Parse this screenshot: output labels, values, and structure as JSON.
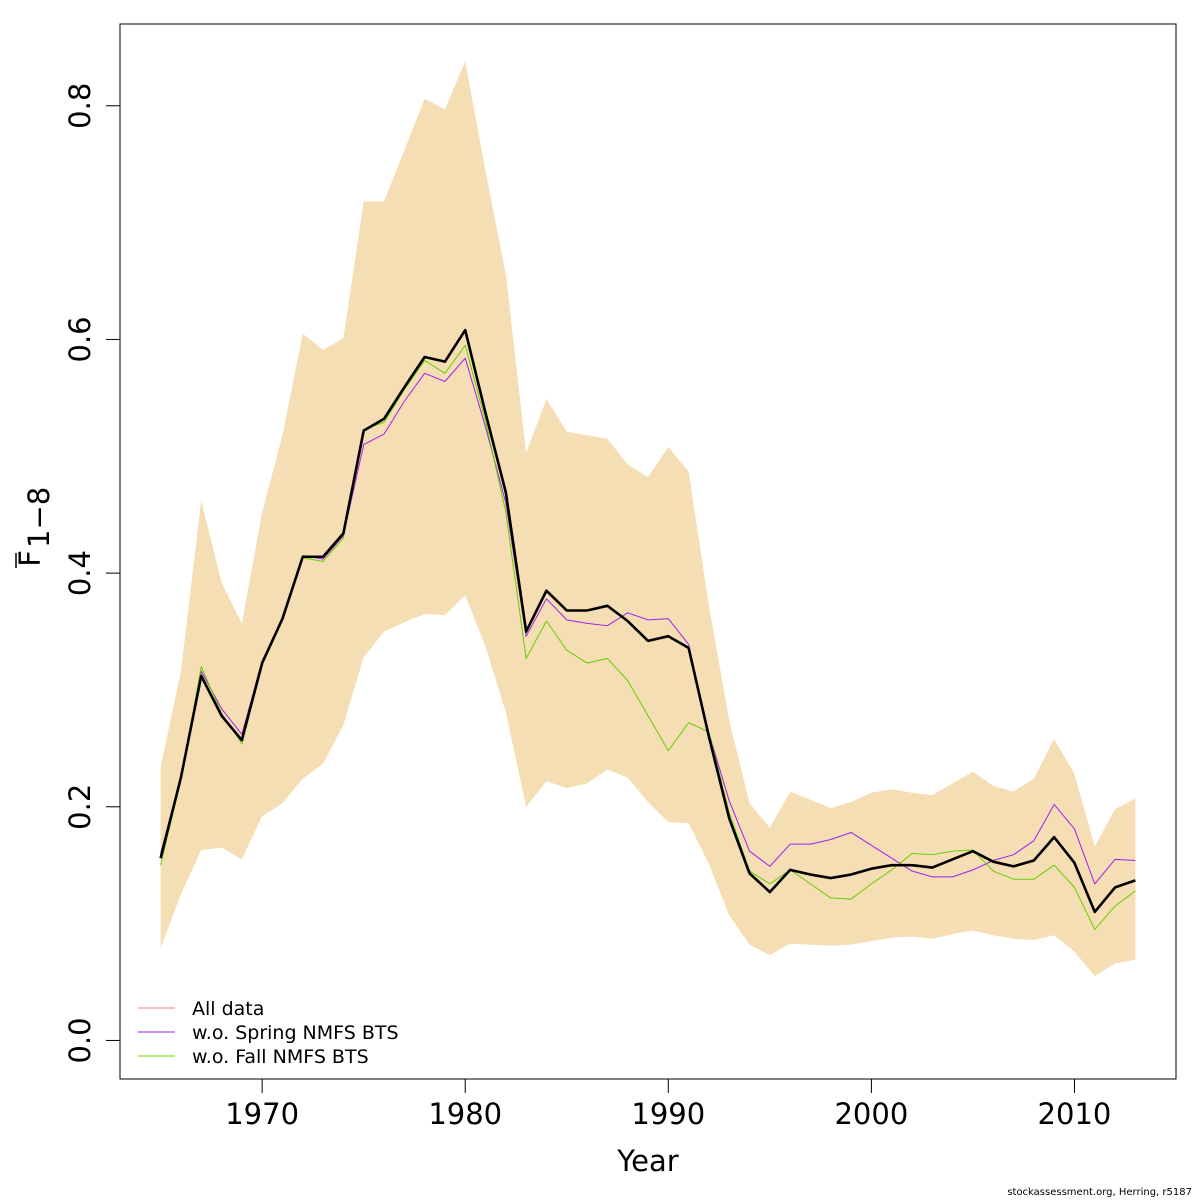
{
  "chart_data": {
    "type": "line",
    "title": "",
    "xlabel": "Year",
    "ylabel": "F",
    "ylabel_subscript": "1−8",
    "xlim": [
      1963,
      2015
    ],
    "ylim": [
      -0.033,
      0.87
    ],
    "x_ticks": [
      1970,
      1980,
      1990,
      2000,
      2010
    ],
    "y_ticks": [
      0.0,
      0.2,
      0.4,
      0.6,
      0.8
    ],
    "y_tick_labels": [
      "0.0",
      "0.2",
      "0.4",
      "0.6",
      "0.8"
    ],
    "grid": false,
    "legend_position": "bottom-left",
    "x": [
      1965,
      1966,
      1967,
      1968,
      1969,
      1970,
      1971,
      1972,
      1973,
      1974,
      1975,
      1976,
      1977,
      1978,
      1979,
      1980,
      1981,
      1982,
      1983,
      1984,
      1985,
      1986,
      1987,
      1988,
      1989,
      1990,
      1991,
      1992,
      1993,
      1994,
      1995,
      1996,
      1997,
      1998,
      1999,
      2000,
      2001,
      2002,
      2003,
      2004,
      2005,
      2006,
      2007,
      2008,
      2009,
      2010,
      2011,
      2012,
      2013
    ],
    "band": {
      "color": "#F5DEB3",
      "lower": [
        0.079,
        0.125,
        0.163,
        0.165,
        0.155,
        0.192,
        0.203,
        0.224,
        0.237,
        0.27,
        0.328,
        0.35,
        0.358,
        0.365,
        0.364,
        0.381,
        0.337,
        0.281,
        0.2,
        0.222,
        0.216,
        0.22,
        0.232,
        0.225,
        0.204,
        0.187,
        0.186,
        0.151,
        0.107,
        0.082,
        0.073,
        0.083,
        0.082,
        0.081,
        0.082,
        0.085,
        0.088,
        0.089,
        0.087,
        0.091,
        0.094,
        0.09,
        0.087,
        0.086,
        0.09,
        0.076,
        0.055,
        0.066,
        0.069
      ],
      "upper": [
        0.234,
        0.316,
        0.462,
        0.392,
        0.357,
        0.452,
        0.518,
        0.605,
        0.591,
        0.601,
        0.718,
        0.718,
        0.762,
        0.806,
        0.797,
        0.838,
        0.744,
        0.656,
        0.503,
        0.549,
        0.521,
        0.518,
        0.515,
        0.493,
        0.482,
        0.508,
        0.487,
        0.372,
        0.274,
        0.203,
        0.182,
        0.213,
        0.206,
        0.199,
        0.204,
        0.212,
        0.215,
        0.212,
        0.21,
        0.22,
        0.23,
        0.218,
        0.213,
        0.224,
        0.258,
        0.228,
        0.166,
        0.198,
        0.207
      ]
    },
    "series": [
      {
        "name": "All data",
        "color": "#000000",
        "legend_color": "#F08080",
        "width": 2.6,
        "values": [
          0.156,
          0.225,
          0.312,
          0.278,
          0.257,
          0.323,
          0.361,
          0.414,
          0.414,
          0.434,
          0.522,
          0.532,
          0.559,
          0.585,
          0.581,
          0.608,
          0.537,
          0.469,
          0.35,
          0.385,
          0.368,
          0.368,
          0.372,
          0.359,
          0.342,
          0.346,
          0.336,
          0.26,
          0.19,
          0.143,
          0.127,
          0.146,
          0.142,
          0.139,
          0.142,
          0.147,
          0.15,
          0.15,
          0.148,
          0.155,
          0.162,
          0.153,
          0.149,
          0.154,
          0.174,
          0.152,
          0.11,
          0.131,
          0.137
        ]
      },
      {
        "name": "w.o. Spring NMFS BTS",
        "color": "#A020F0",
        "legend_color": "#A020F0",
        "width": 1,
        "values": [
          0.16,
          0.226,
          0.316,
          0.284,
          0.262,
          0.325,
          0.361,
          0.415,
          0.412,
          0.432,
          0.51,
          0.519,
          0.547,
          0.571,
          0.564,
          0.584,
          0.525,
          0.46,
          0.346,
          0.378,
          0.36,
          0.357,
          0.355,
          0.366,
          0.36,
          0.361,
          0.339,
          0.263,
          0.205,
          0.162,
          0.149,
          0.168,
          0.168,
          0.172,
          0.178,
          0.167,
          0.156,
          0.145,
          0.14,
          0.14,
          0.146,
          0.154,
          0.159,
          0.171,
          0.202,
          0.181,
          0.134,
          0.155,
          0.154
        ]
      },
      {
        "name": "w.o. Fall NMFS BTS",
        "color": "#66CD00",
        "legend_color": "#7CCD00",
        "width": 1,
        "values": [
          0.15,
          0.223,
          0.32,
          0.28,
          0.254,
          0.322,
          0.36,
          0.413,
          0.41,
          0.43,
          0.523,
          0.529,
          0.557,
          0.582,
          0.571,
          0.595,
          0.53,
          0.452,
          0.327,
          0.359,
          0.334,
          0.323,
          0.327,
          0.308,
          0.278,
          0.248,
          0.272,
          0.264,
          0.195,
          0.145,
          0.134,
          0.146,
          0.134,
          0.122,
          0.121,
          0.134,
          0.146,
          0.16,
          0.159,
          0.162,
          0.163,
          0.145,
          0.138,
          0.138,
          0.15,
          0.131,
          0.095,
          0.115,
          0.128
        ]
      }
    ]
  },
  "footer_text": "stockassessment.org, Herring, r5187"
}
